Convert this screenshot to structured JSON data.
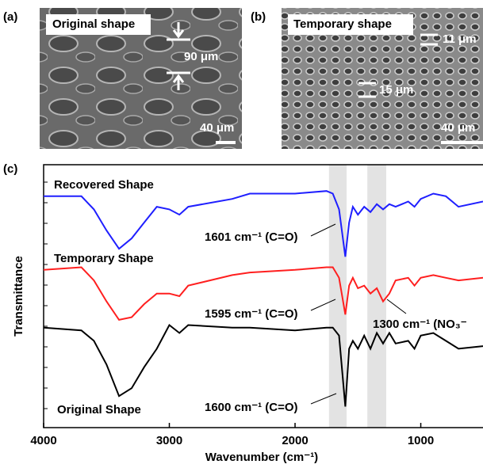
{
  "panels": {
    "a": {
      "label": "(a)",
      "caption": "Original shape",
      "measure": "90 μm",
      "scale": "40 μm"
    },
    "b": {
      "label": "(b)",
      "caption": "Temporary shape",
      "measure_1": "11 μm",
      "measure_2": "15 μm",
      "scale": "40 μm"
    }
  },
  "chart_data": {
    "type": "line",
    "label": "(c)",
    "x_label": "Wavenumber (cm⁻¹)",
    "y_label": "Transmittance",
    "xlim": [
      4000,
      505
    ],
    "ylim": [
      0,
      100
    ],
    "xticks": [
      4000,
      3000,
      2000,
      1000
    ],
    "highlights": [
      [
        1730,
        1590
      ],
      [
        1425,
        1275
      ]
    ],
    "x": [
      4000,
      3700,
      3600,
      3500,
      3400,
      3300,
      3200,
      3100,
      3000,
      2920,
      2850,
      2500,
      2360,
      2000,
      1750,
      1700,
      1650,
      1600,
      1570,
      1540,
      1500,
      1450,
      1400,
      1350,
      1300,
      1250,
      1200,
      1100,
      1050,
      1000,
      900,
      800,
      700,
      505
    ],
    "series": [
      {
        "name": "Recovered Shape",
        "color": "#1f1fff",
        "values": [
          88,
          88,
          83,
          75,
          68,
          72,
          78,
          84,
          83,
          81,
          84,
          87,
          89,
          89,
          90,
          89,
          83,
          65,
          78,
          84,
          81,
          84,
          82,
          85,
          83,
          85,
          84,
          86,
          84,
          87,
          89,
          88,
          84,
          86
        ]
      },
      {
        "name": "Temporary Shape",
        "color": "#ff1f1f",
        "values": [
          60,
          61,
          56,
          48,
          41,
          42,
          47,
          51,
          51,
          50,
          54,
          58,
          59,
          60,
          61,
          61,
          57,
          43,
          54,
          57,
          53,
          54,
          51,
          53,
          48,
          51,
          56,
          57,
          54,
          57,
          58,
          57,
          56,
          57
        ]
      },
      {
        "name": "Original Shape",
        "color": "#000000",
        "values": [
          38,
          37,
          33,
          24,
          12,
          15,
          23,
          30,
          39,
          36,
          39,
          38,
          38,
          37,
          38,
          38,
          35,
          8,
          30,
          33,
          30,
          35,
          30,
          36,
          32,
          36,
          32,
          33,
          30,
          35,
          36,
          33,
          30,
          31
        ]
      }
    ],
    "annotations": [
      "1601 cm⁻¹ (C=O)",
      "1595 cm⁻¹ (C=O)",
      "1300 cm⁻¹ (NO₃⁻",
      "1600 cm⁻¹ (C=O)"
    ]
  }
}
